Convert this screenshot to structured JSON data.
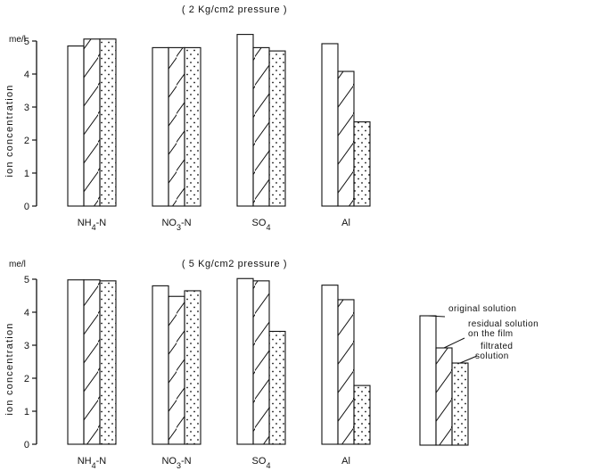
{
  "chart_data": [
    {
      "type": "bar",
      "title": "( 2 Kg/cm2 pressure )",
      "ylabel": "ion concentration",
      "yunit": "me/l",
      "ylim": [
        0,
        5
      ],
      "yticks": [
        "0",
        "1",
        "2",
        "3",
        "4",
        "5"
      ],
      "categories": [
        "NH4-N",
        "NO3-N",
        "SO4",
        "Al"
      ],
      "series": [
        {
          "pattern": "blank",
          "values": [
            4.85,
            4.8,
            5.2,
            4.92
          ]
        },
        {
          "pattern": "hatched",
          "values": [
            5.06,
            4.8,
            4.8,
            4.08
          ]
        },
        {
          "pattern": "dotted",
          "values": [
            5.06,
            4.8,
            4.7,
            2.55
          ]
        }
      ]
    },
    {
      "type": "bar",
      "title": "( 5 Kg/cm2 pressure )",
      "ylabel": "ion concentration",
      "yunit": "me/l",
      "ylim": [
        0,
        5
      ],
      "yticks": [
        "0",
        "1",
        "2",
        "3",
        "4",
        "5"
      ],
      "categories": [
        "NH4-N",
        "NO3-N",
        "SO4",
        "Al"
      ],
      "series": [
        {
          "pattern": "blank",
          "values": [
            4.98,
            4.8,
            5.02,
            4.82
          ]
        },
        {
          "pattern": "hatched",
          "values": [
            4.98,
            4.48,
            4.95,
            4.38
          ]
        },
        {
          "pattern": "dotted",
          "values": [
            4.95,
            4.65,
            3.42,
            1.78
          ]
        }
      ]
    }
  ],
  "legend": {
    "entries": [
      {
        "pattern": "blank",
        "label": "original solution"
      },
      {
        "pattern": "hatched",
        "label": "residual solution on the film"
      },
      {
        "pattern": "dotted",
        "label": "filtrated solution"
      }
    ]
  }
}
